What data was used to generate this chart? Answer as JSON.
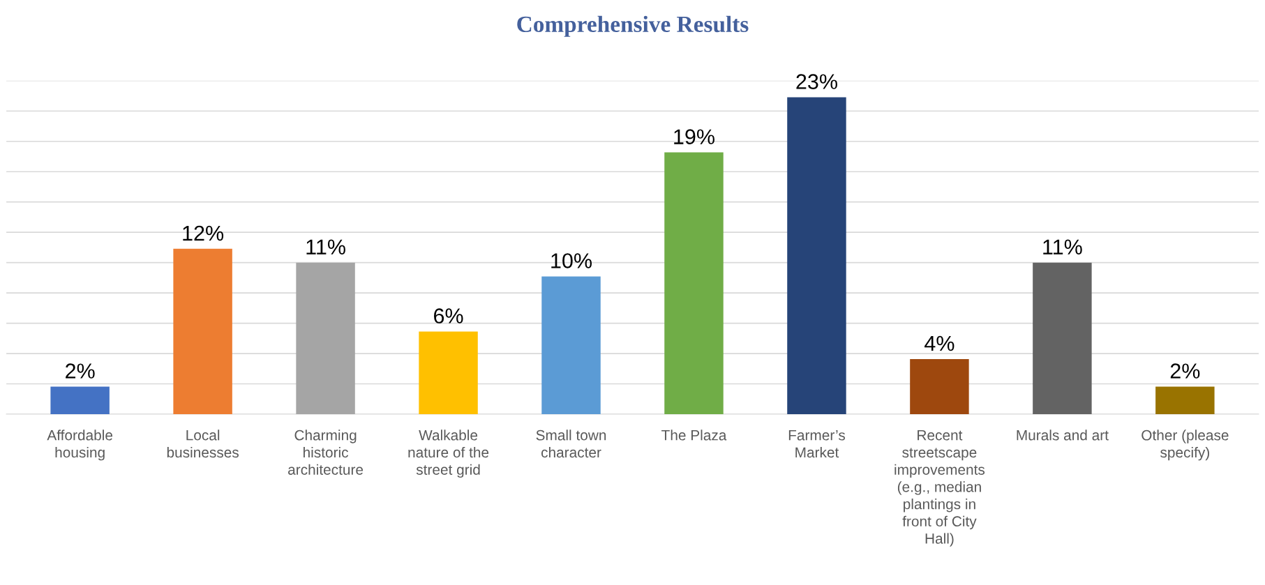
{
  "chart_data": {
    "type": "bar",
    "title": "Comprehensive Results",
    "categories": [
      "Affordable\nhousing",
      "Local\nbusinesses",
      "Charming\nhistoric\narchitecture",
      "Walkable\nnature of the\nstreet grid",
      "Small town\ncharacter",
      "The Plaza",
      "Farmer’s\nMarket",
      "Recent\nstreetscape\nimprovements\n(e.g., median\nplantings in\nfront of City\nHall)",
      "Murals and art",
      "Other (please\nspecify)"
    ],
    "values": [
      2,
      12,
      11,
      6,
      10,
      19,
      23,
      4,
      11,
      2
    ],
    "value_labels": [
      "2%",
      "12%",
      "11%",
      "6%",
      "10%",
      "19%",
      "23%",
      "4%",
      "11%",
      "2%"
    ],
    "colors": [
      "#4472c4",
      "#ed7d31",
      "#a5a5a5",
      "#ffc000",
      "#5b9bd5",
      "#70ad47",
      "#264478",
      "#9e480e",
      "#636363",
      "#997300"
    ],
    "ylim": [
      0,
      24.2
    ],
    "yticks": [
      {
        "value": 0,
        "label": null
      },
      {
        "value": 2.2,
        "label": null
      },
      {
        "value": 4.4,
        "label": null
      },
      {
        "value": 6.6,
        "label": null
      },
      {
        "value": 8.8,
        "label": null
      },
      {
        "value": 11,
        "label": null
      },
      {
        "value": 13.2,
        "label": null
      },
      {
        "value": 15.4,
        "label": null
      },
      {
        "value": 17.6,
        "label": null
      },
      {
        "value": 19.8,
        "label": null
      },
      {
        "value": 22,
        "label": null
      },
      {
        "value": 24.2,
        "label": null
      }
    ],
    "tick_labels": "x",
    "grid": "y",
    "legend": false
  }
}
